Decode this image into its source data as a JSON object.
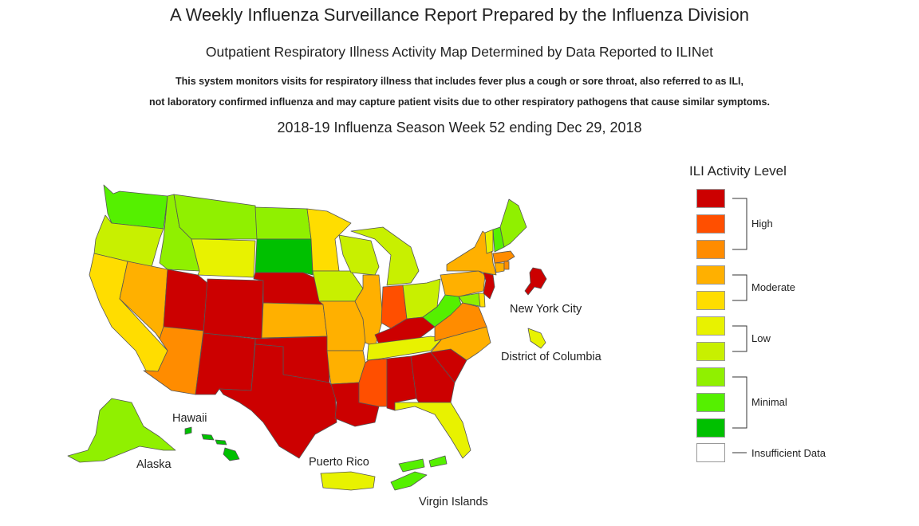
{
  "header": {
    "title": "A Weekly Influenza Surveillance Report Prepared by the Influenza Division",
    "subtitle": "Outpatient Respiratory Illness Activity Map Determined by Data Reported to ILINet",
    "description_line1": "This system monitors visits for respiratory illness that includes fever plus a cough or sore throat, also referred to as ILI,",
    "description_line2": "not laboratory confirmed influenza and may capture patient visits due to other respiratory pathogens that cause similar symptoms.",
    "season": "2018-19 Influenza Season Week 52 ending Dec 29, 2018"
  },
  "legend": {
    "title": "ILI Activity Level",
    "levels": [
      {
        "level": 10,
        "color": "#CC0000"
      },
      {
        "level": 9,
        "color": "#FF4F00"
      },
      {
        "level": 8,
        "color": "#FF8C00"
      },
      {
        "level": 7,
        "color": "#FFB000"
      },
      {
        "level": 6,
        "color": "#FFDD00"
      },
      {
        "level": 5,
        "color": "#E8F200"
      },
      {
        "level": 4,
        "color": "#C8F000"
      },
      {
        "level": 3,
        "color": "#90F000"
      },
      {
        "level": 2,
        "color": "#55F000"
      },
      {
        "level": 1,
        "color": "#00C000"
      }
    ],
    "groups": {
      "high": "High",
      "moderate": "Moderate",
      "low": "Low",
      "minimal": "Minimal"
    },
    "insufficient": {
      "label": "Insufficient Data",
      "color": "#FFFFFF"
    }
  },
  "map_labels": {
    "new_york_city": "New York City",
    "district_of_columbia": "District of Columbia",
    "hawaii": "Hawaii",
    "alaska": "Alaska",
    "puerto_rico": "Puerto Rico",
    "virgin_islands": "Virgin Islands"
  },
  "jurisdictions": [
    {
      "name": "Washington",
      "level": 2
    },
    {
      "name": "Oregon",
      "level": 4
    },
    {
      "name": "California",
      "level": 6
    },
    {
      "name": "Nevada",
      "level": 7
    },
    {
      "name": "Idaho",
      "level": 3
    },
    {
      "name": "Montana",
      "level": 3
    },
    {
      "name": "Wyoming",
      "level": 5
    },
    {
      "name": "Utah",
      "level": 10
    },
    {
      "name": "Arizona",
      "level": 8
    },
    {
      "name": "Colorado",
      "level": 10
    },
    {
      "name": "New Mexico",
      "level": 10
    },
    {
      "name": "North Dakota",
      "level": 3
    },
    {
      "name": "South Dakota",
      "level": 1
    },
    {
      "name": "Nebraska",
      "level": 10
    },
    {
      "name": "Kansas",
      "level": 7
    },
    {
      "name": "Oklahoma",
      "level": 10
    },
    {
      "name": "Texas",
      "level": 10
    },
    {
      "name": "Minnesota",
      "level": 6
    },
    {
      "name": "Iowa",
      "level": 4
    },
    {
      "name": "Missouri",
      "level": 7
    },
    {
      "name": "Arkansas",
      "level": 7
    },
    {
      "name": "Louisiana",
      "level": 10
    },
    {
      "name": "Wisconsin",
      "level": 4
    },
    {
      "name": "Illinois",
      "level": 7
    },
    {
      "name": "Michigan",
      "level": 4
    },
    {
      "name": "Indiana",
      "level": 9
    },
    {
      "name": "Ohio",
      "level": 4
    },
    {
      "name": "Kentucky",
      "level": 10
    },
    {
      "name": "Tennessee",
      "level": 5
    },
    {
      "name": "Mississippi",
      "level": 9
    },
    {
      "name": "Alabama",
      "level": 10
    },
    {
      "name": "Georgia",
      "level": 10
    },
    {
      "name": "Florida",
      "level": 5
    },
    {
      "name": "South Carolina",
      "level": 10
    },
    {
      "name": "North Carolina",
      "level": 7
    },
    {
      "name": "Virginia",
      "level": 8
    },
    {
      "name": "West Virginia",
      "level": 2
    },
    {
      "name": "Maryland",
      "level": 3
    },
    {
      "name": "Delaware",
      "level": 6
    },
    {
      "name": "Pennsylvania",
      "level": 7
    },
    {
      "name": "New Jersey",
      "level": 10
    },
    {
      "name": "New York",
      "level": 7
    },
    {
      "name": "Connecticut",
      "level": 7
    },
    {
      "name": "Rhode Island",
      "level": 8
    },
    {
      "name": "Massachusetts",
      "level": 8
    },
    {
      "name": "Vermont",
      "level": 5
    },
    {
      "name": "New Hampshire",
      "level": 2
    },
    {
      "name": "Maine",
      "level": 3
    },
    {
      "name": "New York City",
      "level": 10
    },
    {
      "name": "District of Columbia",
      "level": 5
    },
    {
      "name": "Alaska",
      "level": 3
    },
    {
      "name": "Hawaii",
      "level": 1
    },
    {
      "name": "Puerto Rico",
      "level": 5
    },
    {
      "name": "Virgin Islands",
      "level": 2
    }
  ]
}
